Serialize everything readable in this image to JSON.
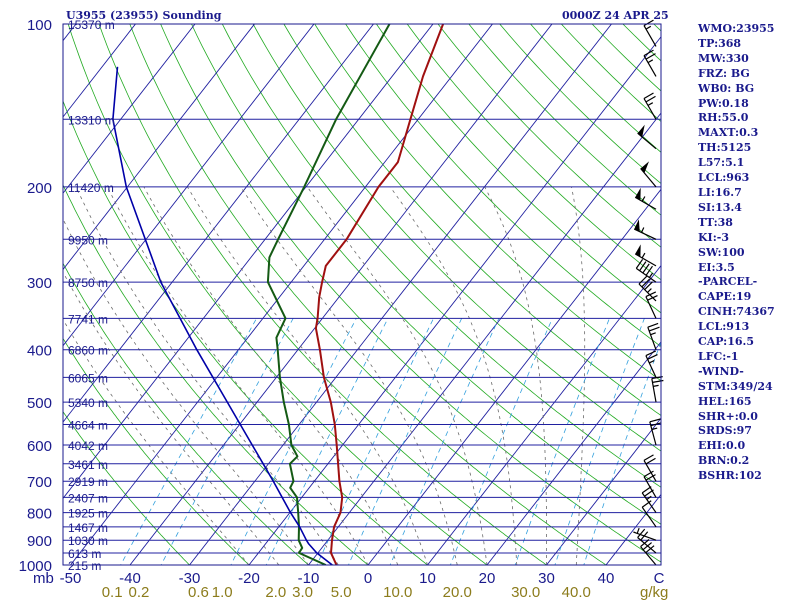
{
  "header": {
    "station_title": "U3955 (23955) Sounding",
    "valid_time": "0000Z 24 APR 25"
  },
  "colors": {
    "axis": "#1a1a8c",
    "isobar": "#2020a0",
    "skewed_isotherm": "#2020a0",
    "dry_adiabat": "#22aa22",
    "moist_adiabat": "#6a6a6a",
    "mixing_ratio": "#33a0dd",
    "temperature": "#a01010",
    "dewpoint": "#145a14",
    "parcel": "#0000a8",
    "wind_barb": "#000000",
    "mixing_ratio_labels": "#8c7c1c"
  },
  "chart_data": {
    "type": "line",
    "title": "U3955 (23955) Sounding",
    "subtitle": "0000Z 24 APR 25",
    "y_unit_label": "mb",
    "x_unit_label": "C",
    "mixing_ratio_unit_label": "g/kg",
    "y_scale": "log",
    "ylim": [
      1000,
      100
    ],
    "xlim": [
      -50,
      50
    ],
    "grid": true,
    "pressure_levels": [
      {
        "p": 100,
        "label": "100",
        "height": "15370 m"
      },
      {
        "p": 150,
        "label": "",
        "height": "13310 m"
      },
      {
        "p": 200,
        "label": "200",
        "height": "11420 m"
      },
      {
        "p": 250,
        "label": "",
        "height": "9950 m"
      },
      {
        "p": 300,
        "label": "300",
        "height": "8750 m"
      },
      {
        "p": 350,
        "label": "",
        "height": "7741 m"
      },
      {
        "p": 400,
        "label": "400",
        "height": "6860 m"
      },
      {
        "p": 450,
        "label": "",
        "height": "6065 m"
      },
      {
        "p": 500,
        "label": "500",
        "height": "5340 m"
      },
      {
        "p": 550,
        "label": "",
        "height": "4664 m"
      },
      {
        "p": 600,
        "label": "600",
        "height": "4042 m"
      },
      {
        "p": 650,
        "label": "",
        "height": "3461 m"
      },
      {
        "p": 700,
        "label": "700",
        "height": "2919 m"
      },
      {
        "p": 750,
        "label": "",
        "height": "2407 m"
      },
      {
        "p": 800,
        "label": "800",
        "height": "1925 m"
      },
      {
        "p": 850,
        "label": "",
        "height": "1467 m"
      },
      {
        "p": 900,
        "label": "900",
        "height": "1030 m"
      },
      {
        "p": 950,
        "label": "",
        "height": "613 m"
      },
      {
        "p": 1000,
        "label": "1000",
        "height": "215 m"
      }
    ],
    "temperature_ticks": [
      -50,
      -40,
      -30,
      -20,
      -10,
      0,
      10,
      20,
      30,
      40
    ],
    "mixing_ratio_ticks": [
      {
        "label": "0.1",
        "t": -43
      },
      {
        "label": "0.2",
        "t": -38.5
      },
      {
        "label": "0.6",
        "t": -28.5
      },
      {
        "label": "1.0",
        "t": -24.5
      },
      {
        "label": "2.0",
        "t": -15.5
      },
      {
        "label": "3.0",
        "t": -11
      },
      {
        "label": "5.0",
        "t": -4.5
      },
      {
        "label": "10.0",
        "t": 5
      },
      {
        "label": "20.0",
        "t": 15
      },
      {
        "label": "30.0",
        "t": 26.5
      },
      {
        "label": "40.0",
        "t": 35
      }
    ],
    "mixing_ratio_lines_gkg": [
      0.1,
      0.2,
      0.6,
      1,
      2,
      3,
      5,
      10,
      20,
      30,
      40
    ],
    "series": [
      {
        "key": "temperature",
        "points": [
          {
            "p": 1000,
            "t": -5.3
          },
          {
            "p": 950,
            "t": -7.8
          },
          {
            "p": 900,
            "t": -9.3
          },
          {
            "p": 850,
            "t": -10.7
          },
          {
            "p": 800,
            "t": -11.5
          },
          {
            "p": 750,
            "t": -13.2
          },
          {
            "p": 700,
            "t": -15.8
          },
          {
            "p": 650,
            "t": -18.3
          },
          {
            "p": 600,
            "t": -21.0
          },
          {
            "p": 550,
            "t": -24.0
          },
          {
            "p": 500,
            "t": -27.6
          },
          {
            "p": 450,
            "t": -32.0
          },
          {
            "p": 400,
            "t": -36.3
          },
          {
            "p": 365,
            "t": -39.8
          },
          {
            "p": 350,
            "t": -40.8
          },
          {
            "p": 320,
            "t": -43.3
          },
          {
            "p": 300,
            "t": -44.8
          },
          {
            "p": 280,
            "t": -46.3
          },
          {
            "p": 250,
            "t": -46.3
          },
          {
            "p": 200,
            "t": -47.8
          },
          {
            "p": 180,
            "t": -47.8
          },
          {
            "p": 150,
            "t": -51.3
          },
          {
            "p": 125,
            "t": -54.8
          },
          {
            "p": 100,
            "t": -58.3
          }
        ]
      },
      {
        "key": "dewpoint",
        "points": [
          {
            "p": 1000,
            "t": -7.1
          },
          {
            "p": 950,
            "t": -13.2
          },
          {
            "p": 930,
            "t": -13.3
          },
          {
            "p": 900,
            "t": -14.9
          },
          {
            "p": 850,
            "t": -16.6
          },
          {
            "p": 800,
            "t": -18.6
          },
          {
            "p": 750,
            "t": -20.8
          },
          {
            "p": 720,
            "t": -23.2
          },
          {
            "p": 700,
            "t": -23.5
          },
          {
            "p": 650,
            "t": -26.4
          },
          {
            "p": 630,
            "t": -26.1
          },
          {
            "p": 600,
            "t": -28.6
          },
          {
            "p": 550,
            "t": -31.7
          },
          {
            "p": 500,
            "t": -35.5
          },
          {
            "p": 450,
            "t": -39.4
          },
          {
            "p": 400,
            "t": -43.4
          },
          {
            "p": 380,
            "t": -45.2
          },
          {
            "p": 350,
            "t": -46.2
          },
          {
            "p": 300,
            "t": -53.9
          },
          {
            "p": 270,
            "t": -56.9
          },
          {
            "p": 250,
            "t": -57.8
          },
          {
            "p": 200,
            "t": -60.3
          },
          {
            "p": 150,
            "t": -63.8
          },
          {
            "p": 100,
            "t": -67.3
          }
        ]
      },
      {
        "key": "parcel",
        "points": [
          {
            "p": 1000,
            "t": -6.0
          },
          {
            "p": 950,
            "t": -10.2
          },
          {
            "p": 913,
            "t": -12.8
          },
          {
            "p": 900,
            "t": -13.6
          },
          {
            "p": 850,
            "t": -16.5
          },
          {
            "p": 800,
            "t": -19.9
          },
          {
            "p": 700,
            "t": -26.9
          },
          {
            "p": 600,
            "t": -35.2
          },
          {
            "p": 500,
            "t": -45.0
          },
          {
            "p": 400,
            "t": -57.0
          },
          {
            "p": 300,
            "t": -71.9
          },
          {
            "p": 200,
            "t": -90.2
          },
          {
            "p": 150,
            "t": -101.3
          },
          {
            "p": 120,
            "t": -107.4
          }
        ]
      }
    ],
    "wind_barbs": [
      {
        "p": 1000,
        "dir": 320,
        "kt": 30
      },
      {
        "p": 950,
        "dir": 310,
        "kt": 20
      },
      {
        "p": 900,
        "dir": 290,
        "kt": 5
      },
      {
        "p": 850,
        "dir": 325,
        "kt": 10
      },
      {
        "p": 800,
        "dir": 325,
        "kt": 25
      },
      {
        "p": 750,
        "dir": 330,
        "kt": 20
      },
      {
        "p": 700,
        "dir": 330,
        "kt": 20
      },
      {
        "p": 600,
        "dir": 345,
        "kt": 25
      },
      {
        "p": 500,
        "dir": 350,
        "kt": 25
      },
      {
        "p": 450,
        "dir": 335,
        "kt": 25
      },
      {
        "p": 400,
        "dir": 340,
        "kt": 25
      },
      {
        "p": 350,
        "dir": 335,
        "kt": 20
      },
      {
        "p": 325,
        "dir": 315,
        "kt": 35
      },
      {
        "p": 300,
        "dir": 305,
        "kt": 45
      },
      {
        "p": 280,
        "dir": 300,
        "kt": 55
      },
      {
        "p": 250,
        "dir": 295,
        "kt": 55
      },
      {
        "p": 220,
        "dir": 300,
        "kt": 55
      },
      {
        "p": 200,
        "dir": 320,
        "kt": 50
      },
      {
        "p": 170,
        "dir": 310,
        "kt": 50
      },
      {
        "p": 150,
        "dir": 330,
        "kt": 25
      },
      {
        "p": 125,
        "dir": 330,
        "kt": 25
      },
      {
        "p": 110,
        "dir": 330,
        "kt": 15
      }
    ]
  },
  "indices": [
    "WMO:23955",
    "TP:368",
    "MW:330",
    "FRZ: BG",
    "WB0: BG",
    "PW:0.18",
    "RH:55.0",
    "MAXT:0.3",
    "TH:5125",
    "L57:5.1",
    "LCL:963",
    "LI:16.7",
    "SI:13.4",
    "TT:38",
    "KI:-3",
    "SW:100",
    "EI:3.5",
    "-PARCEL-",
    "CAPE:19",
    "CINH:74367",
    "LCL:913",
    "CAP:16.5",
    "LFC:-1",
    "-WIND-",
    "STM:349/24",
    "HEL:165",
    "SHR+:0.0",
    "SRDS:97",
    "EHI:0.0",
    "BRN:0.2",
    "BSHR:102"
  ]
}
